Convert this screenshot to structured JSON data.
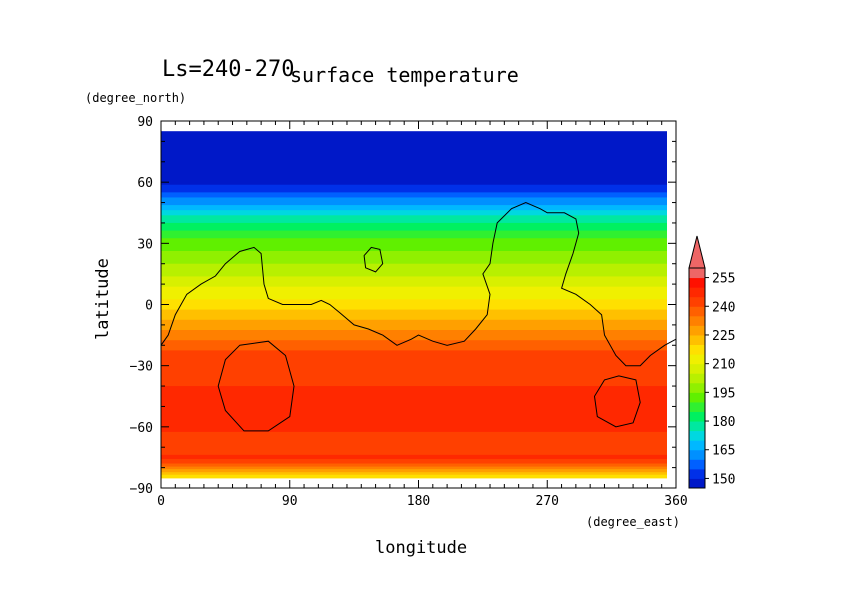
{
  "chart_data": {
    "type": "heatmap",
    "title": "surface temperature",
    "subtitle": "Ls=240-270",
    "xlabel": "longitude",
    "ylabel": "latitude",
    "xunit": "(degree_east)",
    "yunit": "(degree_north)",
    "xlim": [
      0,
      360
    ],
    "ylim": [
      -90,
      90
    ],
    "data_extent_lat": [
      -85,
      85
    ],
    "xticks": [
      "0",
      "90",
      "180",
      "270",
      "360"
    ],
    "yticks": [
      "90",
      "60",
      "30",
      "0",
      "−30",
      "−60",
      "−90"
    ],
    "colorbar": {
      "labels": [
        "255",
        "240",
        "225",
        "210",
        "195",
        "180",
        "165",
        "150"
      ],
      "levels": [
        145,
        150,
        155,
        160,
        165,
        170,
        175,
        180,
        185,
        190,
        195,
        200,
        205,
        210,
        215,
        220,
        225,
        230,
        235,
        240,
        245,
        250,
        255,
        260
      ],
      "colors": [
        "#0018c8",
        "#0030e8",
        "#0060ff",
        "#0090ff",
        "#00b8ff",
        "#00d8e0",
        "#00e8a0",
        "#00f060",
        "#30f030",
        "#60f000",
        "#90f000",
        "#b8f000",
        "#d8f000",
        "#f0f000",
        "#ffe000",
        "#ffc000",
        "#ffa000",
        "#ff8000",
        "#ff6000",
        "#ff4000",
        "#ff2800",
        "#ff1000",
        "#ee6666"
      ],
      "extend": "max"
    },
    "latitude_profile": [
      {
        "lat": 85,
        "t": 148
      },
      {
        "lat": 60,
        "t": 149
      },
      {
        "lat": 55,
        "t": 155
      },
      {
        "lat": 50,
        "t": 163
      },
      {
        "lat": 45,
        "t": 172
      },
      {
        "lat": 40,
        "t": 180
      },
      {
        "lat": 35,
        "t": 187
      },
      {
        "lat": 30,
        "t": 192
      },
      {
        "lat": 25,
        "t": 196
      },
      {
        "lat": 20,
        "t": 200
      },
      {
        "lat": 15,
        "t": 204
      },
      {
        "lat": 10,
        "t": 209
      },
      {
        "lat": 5,
        "t": 213
      },
      {
        "lat": 0,
        "t": 218
      },
      {
        "lat": -5,
        "t": 223
      },
      {
        "lat": -10,
        "t": 228
      },
      {
        "lat": -15,
        "t": 233
      },
      {
        "lat": -20,
        "t": 238
      },
      {
        "lat": -25,
        "t": 242
      },
      {
        "lat": -30,
        "t": 244
      },
      {
        "lat": -40,
        "t": 245
      },
      {
        "lat": -50,
        "t": 246
      },
      {
        "lat": -60,
        "t": 246
      },
      {
        "lat": -65,
        "t": 244
      },
      {
        "lat": -70,
        "t": 243
      },
      {
        "lat": -75,
        "t": 246
      },
      {
        "lat": -78,
        "t": 240
      },
      {
        "lat": -80,
        "t": 232
      },
      {
        "lat": -83,
        "t": 222
      },
      {
        "lat": -85,
        "t": 215
      }
    ],
    "topography_contour": [
      [
        0,
        -20
      ],
      [
        5,
        -15
      ],
      [
        10,
        -5
      ],
      [
        18,
        5
      ],
      [
        28,
        10
      ],
      [
        38,
        14
      ],
      [
        45,
        20
      ],
      [
        55,
        26
      ],
      [
        65,
        28
      ],
      [
        70,
        25
      ],
      [
        72,
        10
      ],
      [
        75,
        3
      ],
      [
        85,
        0
      ],
      [
        105,
        0
      ],
      [
        112,
        2
      ],
      [
        118,
        0
      ],
      [
        125,
        -4
      ],
      [
        135,
        -10
      ],
      [
        145,
        -12
      ],
      [
        155,
        -15
      ],
      [
        165,
        -20
      ],
      [
        175,
        -17
      ],
      [
        180,
        -15
      ],
      [
        190,
        -18
      ],
      [
        200,
        -20
      ],
      [
        212,
        -18
      ],
      [
        220,
        -12
      ],
      [
        228,
        -5
      ],
      [
        230,
        5
      ],
      [
        225,
        15
      ],
      [
        230,
        20
      ],
      [
        232,
        30
      ],
      [
        235,
        40
      ],
      [
        245,
        47
      ],
      [
        255,
        50
      ],
      [
        265,
        47
      ],
      [
        270,
        45
      ],
      [
        282,
        45
      ],
      [
        290,
        42
      ],
      [
        292,
        35
      ],
      [
        288,
        25
      ],
      [
        283,
        15
      ],
      [
        280,
        8
      ],
      [
        290,
        5
      ],
      [
        300,
        0
      ],
      [
        308,
        -5
      ],
      [
        310,
        -15
      ],
      [
        318,
        -25
      ],
      [
        325,
        -30
      ],
      [
        335,
        -30
      ],
      [
        342,
        -25
      ],
      [
        352,
        -20
      ],
      [
        360,
        -17
      ]
    ],
    "closed_contours": [
      [
        [
          55,
          -20
        ],
        [
          75,
          -18
        ],
        [
          87,
          -25
        ],
        [
          93,
          -40
        ],
        [
          90,
          -55
        ],
        [
          75,
          -62
        ],
        [
          58,
          -62
        ],
        [
          45,
          -52
        ],
        [
          40,
          -40
        ],
        [
          45,
          -27
        ]
      ],
      [
        [
          320,
          -35
        ],
        [
          332,
          -37
        ],
        [
          335,
          -48
        ],
        [
          330,
          -58
        ],
        [
          318,
          -60
        ],
        [
          305,
          -55
        ],
        [
          303,
          -45
        ],
        [
          310,
          -37
        ]
      ],
      [
        [
          143,
          18
        ],
        [
          150,
          16
        ],
        [
          155,
          20
        ],
        [
          153,
          27
        ],
        [
          147,
          28
        ],
        [
          142,
          24
        ]
      ]
    ]
  }
}
